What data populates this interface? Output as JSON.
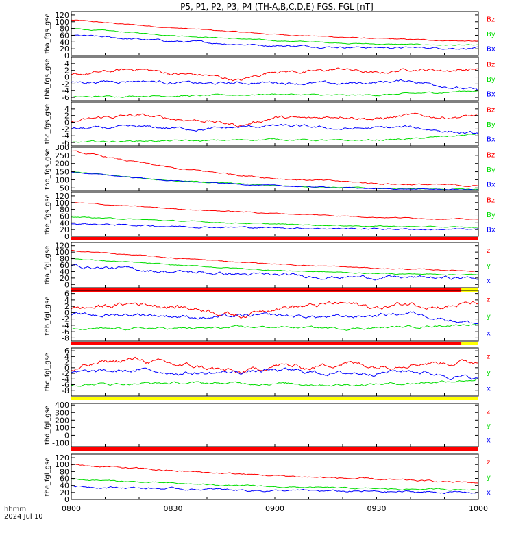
{
  "chart_data": {
    "type": "line",
    "title": "P5, P1, P2, P3, P4 (TH-A,B,C,D,E) FGS, FGL [nT]",
    "xaxis": {
      "tick_labels": [
        "0800",
        "0830",
        "0900",
        "0930",
        "1000"
      ],
      "tick_minutes": [
        480,
        510,
        540,
        570,
        600
      ],
      "range_minutes": [
        480,
        600
      ],
      "footer_labels": [
        "hhmm",
        "2024 Jul 10"
      ]
    },
    "colors": {
      "x": "#0000ff",
      "y": "#00dd00",
      "z": "#ff0000"
    },
    "panels": [
      {
        "ylabel": "tha_fgs_gse",
        "ylim": [
          0,
          130
        ],
        "yticks": [
          0,
          20,
          40,
          60,
          80,
          100,
          120
        ],
        "legend": [
          "Bz",
          "By",
          "Bx"
        ],
        "bar": null,
        "series": [
          {
            "name": "Bz",
            "color": "#ff0000",
            "noise": 0.3,
            "x": [
              480,
              510,
              540,
              570,
              600
            ],
            "values": [
              105,
              82,
              63,
              50,
              42
            ]
          },
          {
            "name": "By",
            "color": "#00dd00",
            "noise": 0.3,
            "x": [
              480,
              510,
              540,
              570,
              600
            ],
            "values": [
              80,
              60,
              44,
              34,
              30
            ]
          },
          {
            "name": "Bx",
            "color": "#0000ff",
            "noise": 0.6,
            "x": [
              480,
              510,
              540,
              570,
              600
            ],
            "values": [
              60,
              42,
              30,
              24,
              22
            ]
          }
        ]
      },
      {
        "ylabel": "thb_fgs_gse",
        "ylim": [
          -7,
          6
        ],
        "yticks": [
          -6,
          -4,
          -2,
          0,
          2,
          4
        ],
        "legend": [
          "Bz",
          "By",
          "Bx"
        ],
        "bar": null,
        "series": [
          {
            "name": "Bz",
            "color": "#ff0000",
            "noise": 1.0,
            "x": [
              480,
              490,
              500,
              510,
              520,
              530,
              540,
              550,
              560,
              570,
              580,
              590,
              600
            ],
            "values": [
              0.5,
              1.5,
              2.5,
              1.0,
              0.5,
              -1.0,
              2.0,
              1.5,
              2.5,
              1.0,
              2.5,
              2.0,
              2.5
            ]
          },
          {
            "name": "By",
            "color": "#00dd00",
            "noise": 0.5,
            "x": [
              480,
              500,
              520,
              540,
              560,
              580,
              600
            ],
            "values": [
              -6.0,
              -5.5,
              -5.5,
              -5.0,
              -5.5,
              -5.0,
              -4.0
            ]
          },
          {
            "name": "Bx",
            "color": "#0000ff",
            "noise": 0.9,
            "x": [
              480,
              500,
              520,
              540,
              560,
              580,
              600
            ],
            "values": [
              -1.5,
              -1.0,
              -2.0,
              -1.5,
              -2.0,
              -1.0,
              -4.0
            ]
          }
        ]
      },
      {
        "ylabel": "thc_fgs_gse",
        "ylim": [
          -7,
          6
        ],
        "yticks": [
          -6,
          -4,
          -2,
          0,
          2,
          4
        ],
        "legend": [
          "Bz",
          "By",
          "Bx"
        ],
        "bar": null,
        "series": [
          {
            "name": "Bz",
            "color": "#ff0000",
            "noise": 1.0,
            "x": [
              480,
              490,
              500,
              510,
              520,
              530,
              540,
              550,
              560,
              570,
              580,
              590,
              600
            ],
            "values": [
              0.0,
              1.5,
              2.0,
              1.0,
              0.5,
              -1.0,
              1.5,
              1.0,
              2.0,
              1.0,
              2.0,
              1.5,
              2.0
            ]
          },
          {
            "name": "By",
            "color": "#00dd00",
            "noise": 0.5,
            "x": [
              480,
              500,
              520,
              540,
              560,
              580,
              600
            ],
            "values": [
              -6.0,
              -5.5,
              -5.5,
              -5.0,
              -5.5,
              -5.0,
              -3.5
            ]
          },
          {
            "name": "Bx",
            "color": "#0000ff",
            "noise": 0.9,
            "x": [
              480,
              500,
              520,
              540,
              560,
              580,
              600
            ],
            "values": [
              -2.0,
              -1.5,
              -2.0,
              -1.0,
              -2.0,
              -1.5,
              -3.5
            ]
          }
        ]
      },
      {
        "ylabel": "thd_fgs_gse",
        "ylim": [
          30,
          300
        ],
        "yticks": [
          50,
          100,
          150,
          200,
          250,
          300
        ],
        "legend": [
          "Bz",
          "By",
          "Bx"
        ],
        "bar": null,
        "series": [
          {
            "name": "Bz",
            "color": "#ff0000",
            "noise": 0.5,
            "x": [
              480,
              510,
              540,
              570,
              600
            ],
            "values": [
              275,
              170,
              110,
              78,
              62
            ]
          },
          {
            "name": "By",
            "color": "#00dd00",
            "noise": 0.3,
            "x": [
              480,
              510,
              540,
              570,
              600
            ],
            "values": [
              150,
              95,
              65,
              47,
              40
            ]
          },
          {
            "name": "Bx",
            "color": "#0000ff",
            "noise": 0.3,
            "x": [
              480,
              510,
              540,
              570,
              600
            ],
            "values": [
              148,
              93,
              63,
              45,
              38
            ]
          }
        ]
      },
      {
        "ylabel": "the_fgs_gse",
        "ylim": [
          0,
          130
        ],
        "yticks": [
          0,
          20,
          40,
          60,
          80,
          100,
          120
        ],
        "legend": [
          "Bz",
          "By",
          "Bx"
        ],
        "bar": "red",
        "series": [
          {
            "name": "Bz",
            "color": "#ff0000",
            "noise": 0.3,
            "x": [
              480,
              510,
              540,
              570,
              600
            ],
            "values": [
              100,
              82,
              68,
              57,
              50
            ]
          },
          {
            "name": "By",
            "color": "#00dd00",
            "noise": 0.3,
            "x": [
              480,
              510,
              540,
              570,
              600
            ],
            "values": [
              58,
              46,
              36,
              30,
              26
            ]
          },
          {
            "name": "Bx",
            "color": "#0000ff",
            "noise": 0.5,
            "x": [
              480,
              510,
              540,
              570,
              600
            ],
            "values": [
              38,
              30,
              25,
              22,
              20
            ]
          }
        ]
      },
      {
        "ylabel": "tha_fgl_gse",
        "ylim": [
          -10,
          130
        ],
        "yticks": [
          0,
          20,
          40,
          60,
          80,
          100,
          120
        ],
        "legend": [
          "z",
          "y",
          "x"
        ],
        "bar": "red-yellow",
        "series": [
          {
            "name": "z",
            "color": "#ff0000",
            "noise": 0.3,
            "x": [
              480,
              510,
              540,
              570,
              600
            ],
            "values": [
              105,
              82,
              63,
              50,
              42
            ]
          },
          {
            "name": "y",
            "color": "#00dd00",
            "noise": 0.3,
            "x": [
              480,
              510,
              540,
              570,
              600
            ],
            "values": [
              80,
              60,
              44,
              34,
              30
            ]
          },
          {
            "name": "x",
            "color": "#0000ff",
            "noise": 1.0,
            "x": [
              480,
              510,
              540,
              570,
              600
            ],
            "values": [
              58,
              40,
              28,
              22,
              20
            ]
          }
        ]
      },
      {
        "ylabel": "thb_fgl_gse",
        "ylim": [
          -9,
          7
        ],
        "yticks": [
          -8,
          -6,
          -4,
          -2,
          0,
          2,
          4,
          6
        ],
        "legend": [
          "z",
          "y",
          "x"
        ],
        "bar": "red-yellow",
        "series": [
          {
            "name": "z",
            "color": "#ff0000",
            "noise": 1.3,
            "x": [
              480,
              490,
              500,
              510,
              520,
              530,
              540,
              550,
              560,
              570,
              580,
              590,
              600
            ],
            "values": [
              1.0,
              2.0,
              3.0,
              2.0,
              1.0,
              -1.0,
              2.0,
              2.0,
              3.0,
              1.5,
              3.0,
              2.0,
              3.0
            ]
          },
          {
            "name": "y",
            "color": "#00dd00",
            "noise": 0.6,
            "x": [
              480,
              500,
              520,
              540,
              560,
              580,
              600
            ],
            "values": [
              -5.5,
              -5.0,
              -5.0,
              -4.5,
              -5.0,
              -4.5,
              -3.5
            ]
          },
          {
            "name": "x",
            "color": "#0000ff",
            "noise": 1.0,
            "x": [
              480,
              500,
              520,
              540,
              560,
              580,
              600
            ],
            "values": [
              -1.0,
              -0.5,
              -1.5,
              -1.0,
              -1.5,
              0.0,
              -3.5
            ]
          }
        ]
      },
      {
        "ylabel": "thc_fgl_gse",
        "ylim": [
          -10,
          7
        ],
        "yticks": [
          -8,
          -6,
          -4,
          -2,
          0,
          2,
          4,
          6
        ],
        "legend": [
          "z",
          "y",
          "x"
        ],
        "bar": "yellow",
        "series": [
          {
            "name": "z",
            "color": "#ff0000",
            "noise": 1.4,
            "x": [
              480,
              490,
              500,
              510,
              520,
              530,
              540,
              550,
              560,
              570,
              580,
              590,
              600
            ],
            "values": [
              -1.0,
              2.0,
              3.0,
              1.0,
              0.0,
              -2.0,
              1.0,
              0.0,
              2.0,
              0.5,
              2.0,
              2.0,
              2.0
            ]
          },
          {
            "name": "y",
            "color": "#00dd00",
            "noise": 0.7,
            "x": [
              480,
              500,
              520,
              540,
              560,
              580,
              600
            ],
            "values": [
              -6.0,
              -5.5,
              -5.5,
              -5.5,
              -6.0,
              -5.5,
              -4.0
            ]
          },
          {
            "name": "x",
            "color": "#0000ff",
            "noise": 1.2,
            "x": [
              480,
              500,
              520,
              540,
              560,
              580,
              600
            ],
            "values": [
              -2.0,
              -1.0,
              -2.0,
              -1.0,
              -2.0,
              -1.0,
              -4.0
            ]
          }
        ]
      },
      {
        "ylabel": "thd_fgl_gse",
        "ylim": [
          -150,
          420
        ],
        "yticks": [
          -100,
          0,
          100,
          200,
          300,
          400
        ],
        "legend": [
          "z",
          "y",
          "x"
        ],
        "bar": "red",
        "series": []
      },
      {
        "ylabel": "the_fgl_gse",
        "ylim": [
          0,
          130
        ],
        "yticks": [
          0,
          20,
          40,
          60,
          80,
          100,
          120
        ],
        "legend": [
          "z",
          "y",
          "x"
        ],
        "bar": null,
        "series": [
          {
            "name": "z",
            "color": "#ff0000",
            "noise": 0.5,
            "x": [
              480,
              510,
              540,
              570,
              600
            ],
            "values": [
              100,
              82,
              68,
              57,
              48
            ]
          },
          {
            "name": "y",
            "color": "#00dd00",
            "noise": 0.4,
            "x": [
              480,
              510,
              540,
              570,
              600
            ],
            "values": [
              58,
              46,
              36,
              30,
              28
            ]
          },
          {
            "name": "x",
            "color": "#0000ff",
            "noise": 0.6,
            "x": [
              480,
              510,
              540,
              570,
              600
            ],
            "values": [
              38,
              30,
              25,
              22,
              20
            ]
          }
        ]
      }
    ]
  }
}
